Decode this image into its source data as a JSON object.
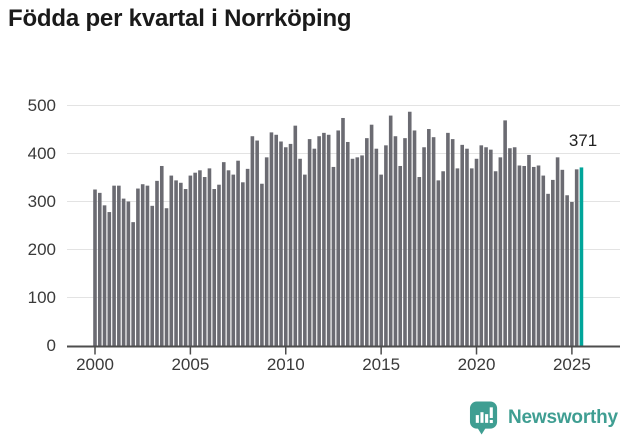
{
  "header": {
    "title": "Födda per kvartal i Norrköping"
  },
  "chart_data": {
    "type": "bar",
    "title": "Födda per kvartal i Norrköping",
    "period_start": "2000 Q1",
    "period_end": "2025 Q3",
    "values": [
      325,
      318,
      292,
      278,
      333,
      333,
      306,
      300,
      257,
      327,
      336,
      333,
      291,
      343,
      374,
      286,
      354,
      344,
      339,
      326,
      354,
      360,
      365,
      351,
      369,
      326,
      335,
      382,
      365,
      356,
      385,
      340,
      368,
      436,
      427,
      337,
      392,
      444,
      439,
      425,
      413,
      420,
      458,
      389,
      356,
      430,
      410,
      436,
      443,
      439,
      372,
      448,
      474,
      424,
      389,
      392,
      396,
      432,
      460,
      410,
      356,
      417,
      479,
      436,
      374,
      432,
      487,
      448,
      351,
      413,
      451,
      434,
      344,
      363,
      443,
      430,
      369,
      418,
      410,
      369,
      389,
      417,
      413,
      408,
      363,
      392,
      469,
      411,
      413,
      375,
      374,
      397,
      372,
      375,
      354,
      316,
      345,
      392,
      366,
      313,
      299,
      367,
      371
    ],
    "highlight_index": 102,
    "highlight_value_label": "371",
    "ylim": [
      0,
      500
    ],
    "yticks": [
      0,
      100,
      200,
      300,
      400,
      500
    ],
    "xticks": [
      2000,
      2005,
      2010,
      2015,
      2020,
      2025
    ],
    "grid": true,
    "legend": false,
    "bar_color": "#6b6b72",
    "highlight_color": "#00a59a",
    "grid_color": "#e3e3e3",
    "axis_color": "#4d4d4d",
    "tick_text_color": "#3a3a3a"
  },
  "branding": {
    "name": "Newsworthy",
    "color": "#3f9e92"
  }
}
